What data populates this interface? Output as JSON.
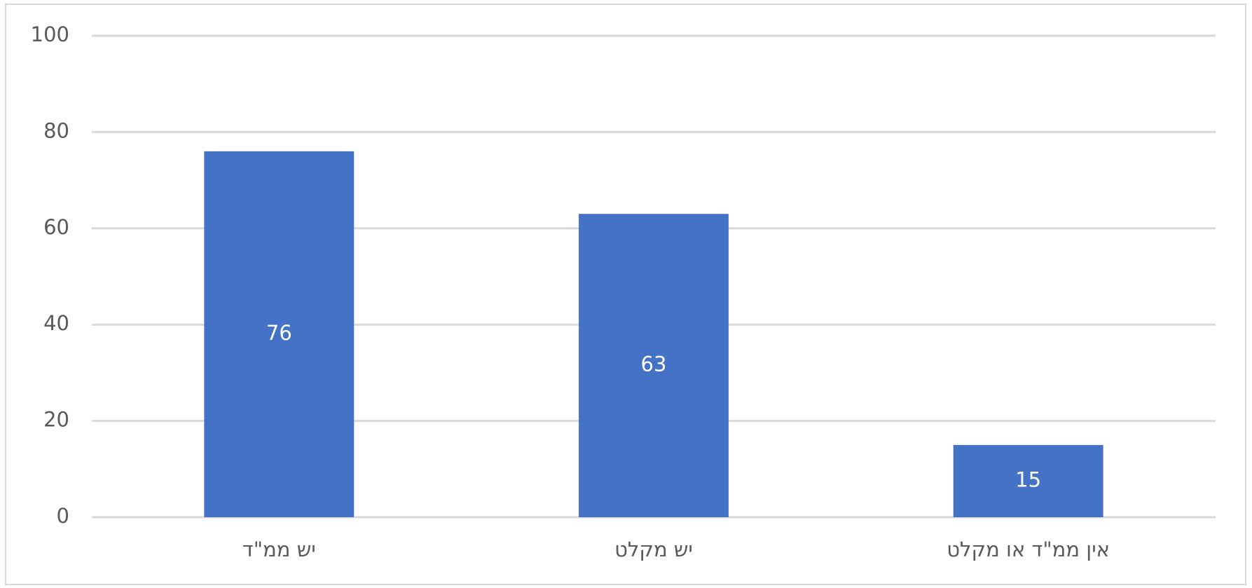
{
  "chart_data": {
    "type": "bar",
    "categories": [
      "יש ממ\"ד",
      "יש מקלט",
      "אין ממ\"ד או מקלט"
    ],
    "values": [
      76,
      63,
      15
    ],
    "color": "#4472c4",
    "ylim": [
      0,
      100
    ],
    "yticks": [
      0,
      20,
      40,
      60,
      80,
      100
    ],
    "grid": true
  }
}
